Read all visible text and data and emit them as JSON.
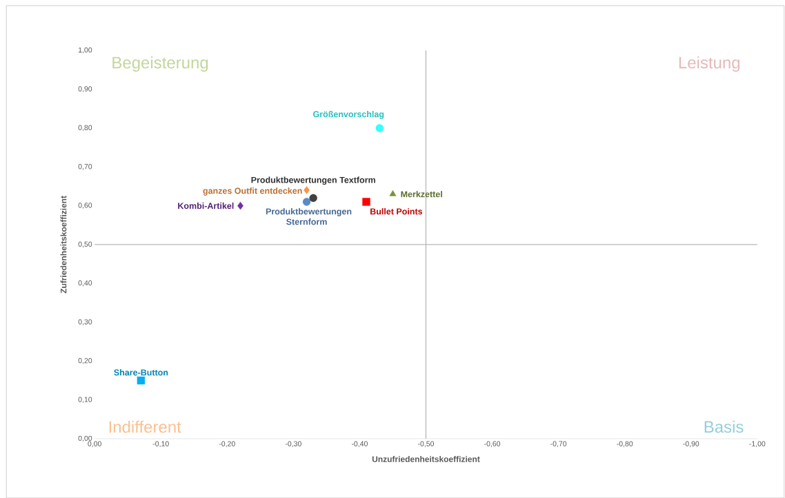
{
  "chart_data": {
    "type": "scatter",
    "xlabel": "Unzufriedenheitskoeffizient",
    "ylabel": "Zufriedenheitskoeffizient",
    "xlim": [
      0,
      -1
    ],
    "ylim": [
      0,
      1
    ],
    "xticks": [
      {
        "value": 0,
        "label": "0,00"
      },
      {
        "value": -0.1,
        "label": "-0,10"
      },
      {
        "value": -0.2,
        "label": "-0,20"
      },
      {
        "value": -0.3,
        "label": "-0,30"
      },
      {
        "value": -0.4,
        "label": "-0,40"
      },
      {
        "value": -0.5,
        "label": "-0,50"
      },
      {
        "value": -0.6,
        "label": "-0,60"
      },
      {
        "value": -0.7,
        "label": "-0,70"
      },
      {
        "value": -0.8,
        "label": "-0,80"
      },
      {
        "value": -0.9,
        "label": "-0,90"
      },
      {
        "value": -1,
        "label": "-1,00"
      }
    ],
    "yticks": [
      {
        "value": 0,
        "label": "0,00"
      },
      {
        "value": 0.1,
        "label": "0,10"
      },
      {
        "value": 0.2,
        "label": "0,20"
      },
      {
        "value": 0.3,
        "label": "0,30"
      },
      {
        "value": 0.4,
        "label": "0,40"
      },
      {
        "value": 0.5,
        "label": "0,50"
      },
      {
        "value": 0.6,
        "label": "0,60"
      },
      {
        "value": 0.7,
        "label": "0,70"
      },
      {
        "value": 0.8,
        "label": "0,80"
      },
      {
        "value": 0.9,
        "label": "0,90"
      },
      {
        "value": 1,
        "label": "1,00"
      }
    ],
    "series": [
      {
        "name": "Share-Button",
        "color": "#00b0f0",
        "marker": "square",
        "x": [
          -0.07
        ],
        "values": [
          0.15
        ]
      },
      {
        "name": "Kombi-Artikel",
        "color": "#7030a0",
        "marker": "diamond",
        "x": [
          -0.22
        ],
        "values": [
          0.6
        ]
      },
      {
        "name": "Produktbewertungen Sternform",
        "color": "#5b8ac6",
        "marker": "circle",
        "x": [
          -0.32
        ],
        "values": [
          0.61
        ]
      },
      {
        "name": "Produktbewertungen Textform",
        "color": "#404040",
        "marker": "circle",
        "x": [
          -0.33
        ],
        "values": [
          0.62
        ]
      },
      {
        "name": "ganzes Outfit entdecken",
        "color": "#f79646",
        "marker": "diamond",
        "x": [
          -0.32
        ],
        "values": [
          0.64
        ]
      },
      {
        "name": "Größenvorschlag",
        "color": "#33ffff",
        "marker": "circle",
        "x": [
          -0.43
        ],
        "values": [
          0.8
        ]
      },
      {
        "name": "Bullet Points",
        "color": "#ff0000",
        "marker": "square",
        "x": [
          -0.41
        ],
        "values": [
          0.61
        ]
      },
      {
        "name": "Merkzettel",
        "color": "#77933c",
        "marker": "triangle",
        "x": [
          -0.45
        ],
        "values": [
          0.63
        ]
      }
    ],
    "ref_lines": [
      {
        "axis": "x",
        "value": -0.5,
        "color": "#a6a6a6"
      },
      {
        "axis": "y",
        "value": 0.5,
        "color": "#a6a6a6"
      }
    ],
    "annotations": [
      "Begeisterung",
      "Leistung",
      "Indifferent",
      "Basis"
    ]
  }
}
